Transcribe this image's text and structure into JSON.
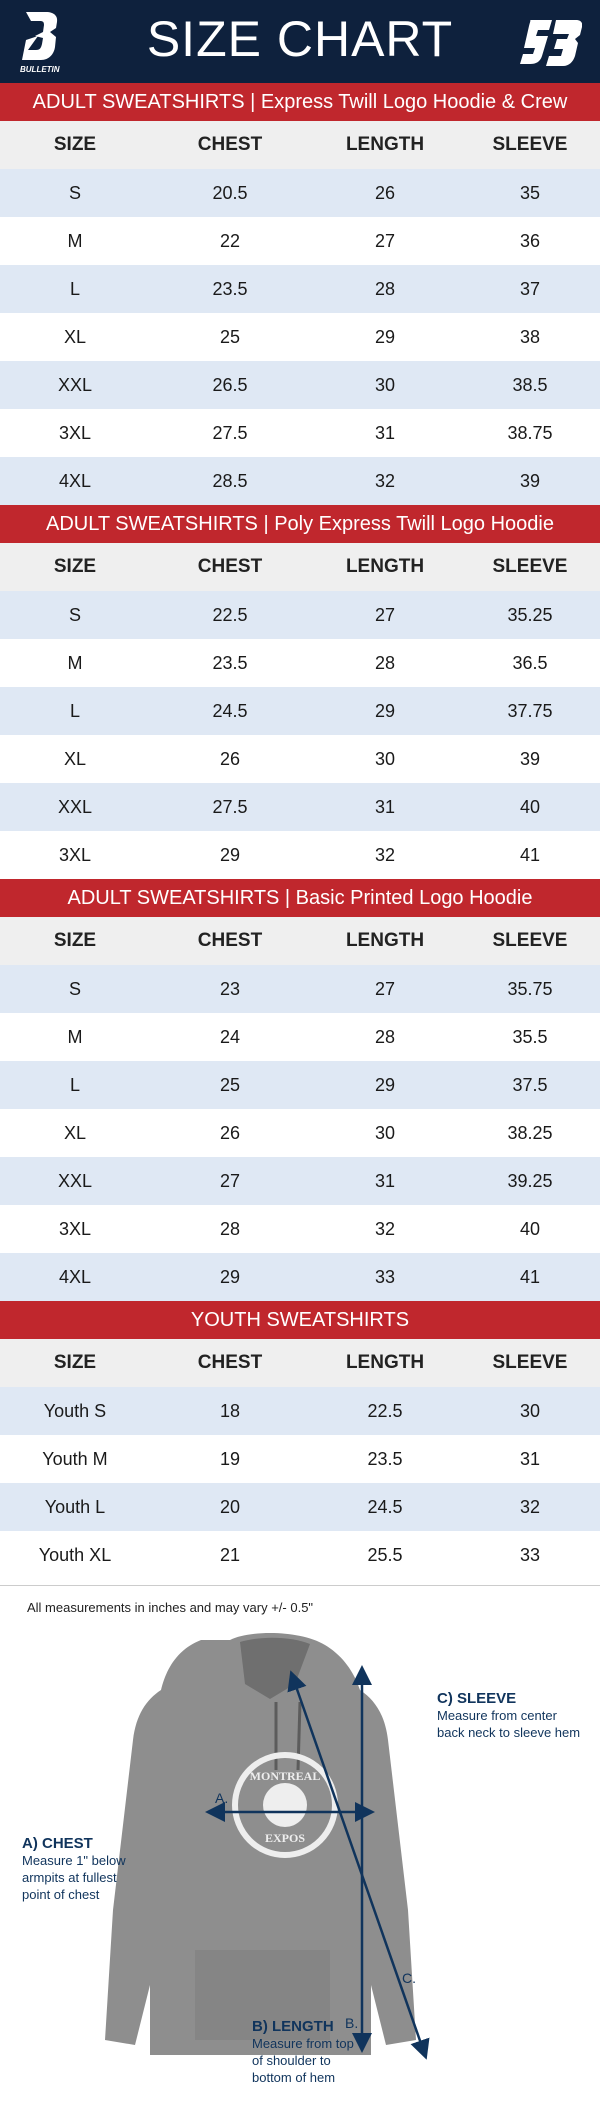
{
  "header": {
    "title": "SIZE CHART",
    "brand_left": "BULLETIN",
    "brand_left_icon": "bulletin-b-logo",
    "brand_right_icon": "sb-logo"
  },
  "columns": [
    "SIZE",
    "CHEST",
    "LENGTH",
    "SLEEVE"
  ],
  "tables": [
    {
      "title": "ADULT SWEATSHIRTS | Express Twill Logo Hoodie & Crew",
      "rows": [
        [
          "S",
          "20.5",
          "26",
          "35"
        ],
        [
          "M",
          "22",
          "27",
          "36"
        ],
        [
          "L",
          "23.5",
          "28",
          "37"
        ],
        [
          "XL",
          "25",
          "29",
          "38"
        ],
        [
          "XXL",
          "26.5",
          "30",
          "38.5"
        ],
        [
          "3XL",
          "27.5",
          "31",
          "38.75"
        ],
        [
          "4XL",
          "28.5",
          "32",
          "39"
        ]
      ]
    },
    {
      "title": "ADULT SWEATSHIRTS | Poly Express Twill Logo Hoodie",
      "rows": [
        [
          "S",
          "22.5",
          "27",
          "35.25"
        ],
        [
          "M",
          "23.5",
          "28",
          "36.5"
        ],
        [
          "L",
          "24.5",
          "29",
          "37.75"
        ],
        [
          "XL",
          "26",
          "30",
          "39"
        ],
        [
          "XXL",
          "27.5",
          "31",
          "40"
        ],
        [
          "3XL",
          "29",
          "32",
          "41"
        ]
      ]
    },
    {
      "title": "ADULT SWEATSHIRTS | Basic Printed Logo Hoodie",
      "rows": [
        [
          "S",
          "23",
          "27",
          "35.75"
        ],
        [
          "M",
          "24",
          "28",
          "35.5"
        ],
        [
          "L",
          "25",
          "29",
          "37.5"
        ],
        [
          "XL",
          "26",
          "30",
          "38.25"
        ],
        [
          "XXL",
          "27",
          "31",
          "39.25"
        ],
        [
          "3XL",
          "28",
          "32",
          "40"
        ],
        [
          "4XL",
          "29",
          "33",
          "41"
        ]
      ]
    },
    {
      "title": "YOUTH SWEATSHIRTS",
      "rows": [
        [
          "Youth S",
          "18",
          "22.5",
          "30"
        ],
        [
          "Youth M",
          "19",
          "23.5",
          "31"
        ],
        [
          "Youth L",
          "20",
          "24.5",
          "32"
        ],
        [
          "Youth XL",
          "21",
          "25.5",
          "33"
        ]
      ]
    }
  ],
  "note": "All measurements in inches and may vary +/- 0.5\"",
  "diagram": {
    "markers": {
      "a": "A.",
      "b": "B.",
      "c": "C."
    },
    "chest": {
      "title": "A) CHEST",
      "desc": "Measure 1\" below armpits at fullest point of chest"
    },
    "length": {
      "title": "B) LENGTH",
      "desc": "Measure from top of shoulder to bottom of hem"
    },
    "sleeve": {
      "title": "C) SLEEVE",
      "desc": "Measure from center back neck to sleeve hem"
    },
    "logo_text_top": "MONTREAL",
    "logo_text_bottom": "EXPOS"
  },
  "colors": {
    "navy": "#0e213d",
    "red": "#c0272d",
    "row_alt": "#dfe8f4",
    "arrow": "#10345c"
  }
}
